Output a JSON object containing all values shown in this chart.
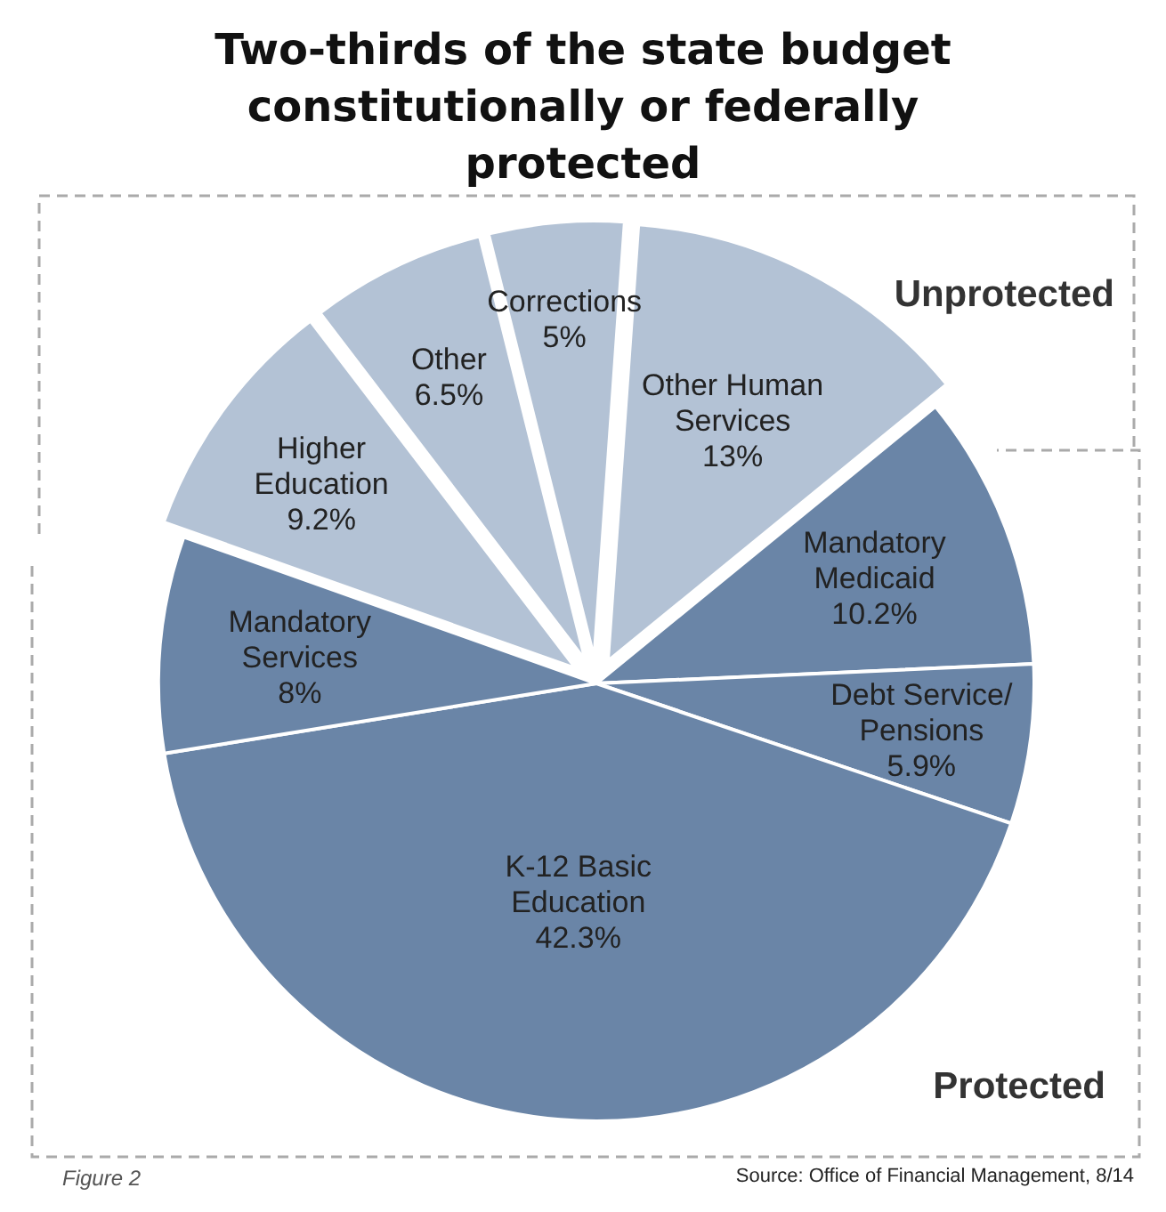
{
  "chart_data": {
    "type": "pie",
    "title": "Two-thirds of the state budget constitutionally or federally protected",
    "categories": [
      "Other Human Services",
      "Mandatory Medicaid",
      "Debt Service/ Pensions",
      "K-12 Basic Education",
      "Mandatory Services",
      "Higher Education",
      "Other",
      "Corrections"
    ],
    "values": [
      13,
      10.2,
      5.9,
      42.3,
      8,
      9.2,
      6.5,
      5
    ],
    "value_labels": [
      "13%",
      "10.2%",
      "5.9%",
      "42.3%",
      "8%",
      "9.2%",
      "6.5%",
      "5%"
    ],
    "colors": [
      "#b3c2d5",
      "#6a85a7",
      "#6a85a7",
      "#6a85a7",
      "#6a85a7",
      "#b3c2d5",
      "#b3c2d5",
      "#b3c2d5"
    ],
    "annotations": [
      "Unprotected",
      "Protected",
      "Figure 2",
      "Source: Office of Financial Management, 8/14"
    ]
  }
}
